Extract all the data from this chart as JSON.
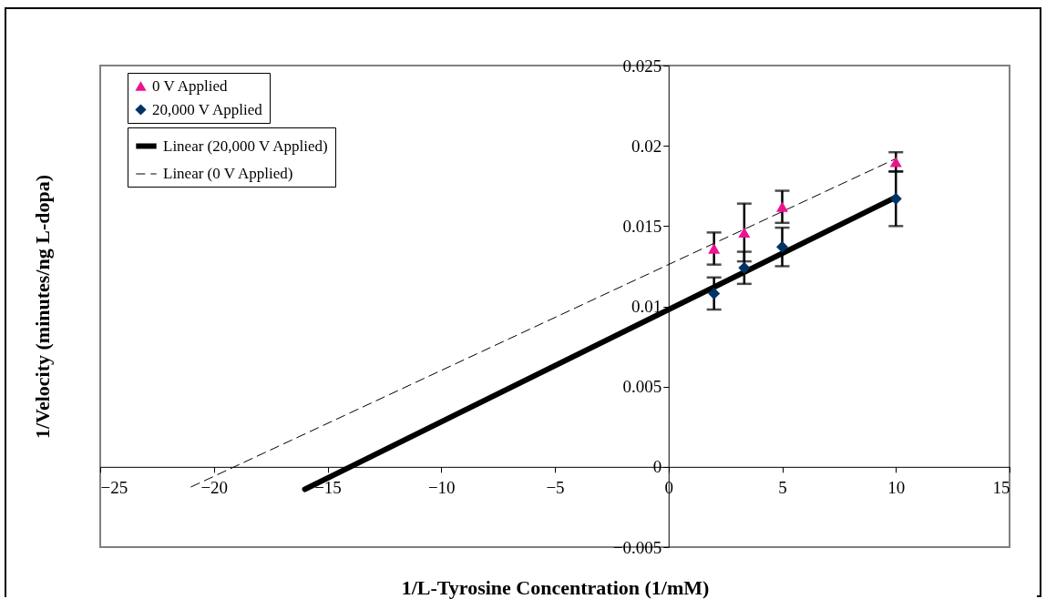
{
  "chart_data": {
    "type": "scatter",
    "xlabel": "1/L-Tyrosine Concentration (1/mM)",
    "ylabel": "1/Velocity (minutes/ng L-dopa)",
    "xlim": [
      -25,
      15
    ],
    "ylim": [
      -0.005,
      0.025
    ],
    "xticks": [
      -25,
      -20,
      -15,
      -10,
      -5,
      0,
      5,
      10,
      15
    ],
    "yticks": [
      -0.005,
      0,
      0.005,
      0.01,
      0.015,
      0.02,
      0.025
    ],
    "grid": false,
    "legend": "top left",
    "series": [
      {
        "name": "0 V Applied",
        "type": "scatter",
        "marker": "triangle",
        "color": "#ee1290",
        "x": [
          2,
          3.33,
          5,
          10
        ],
        "values": [
          0.0136,
          0.0146,
          0.0162,
          0.019
        ],
        "errors": [
          0.001,
          0.0018,
          0.001,
          0.0006
        ]
      },
      {
        "name": "20,000 V Applied",
        "type": "scatter",
        "marker": "diamond",
        "color": "#003366",
        "x": [
          2,
          3.33,
          5,
          10
        ],
        "values": [
          0.0108,
          0.0124,
          0.0137,
          0.0167
        ],
        "errors": [
          0.001,
          0.001,
          0.0012,
          0.0017
        ]
      },
      {
        "name": "Linear (20,000 V Applied)",
        "type": "line",
        "line_style": "solid",
        "color": "#000000",
        "x": [
          -16,
          10
        ],
        "values": [
          -0.0014,
          0.0168
        ]
      },
      {
        "name": "Linear (0 V Applied)",
        "type": "line",
        "line_style": "dashed",
        "color": "#000000",
        "x": [
          -21,
          10
        ],
        "values": [
          -0.00125,
          0.0192
        ]
      }
    ]
  }
}
